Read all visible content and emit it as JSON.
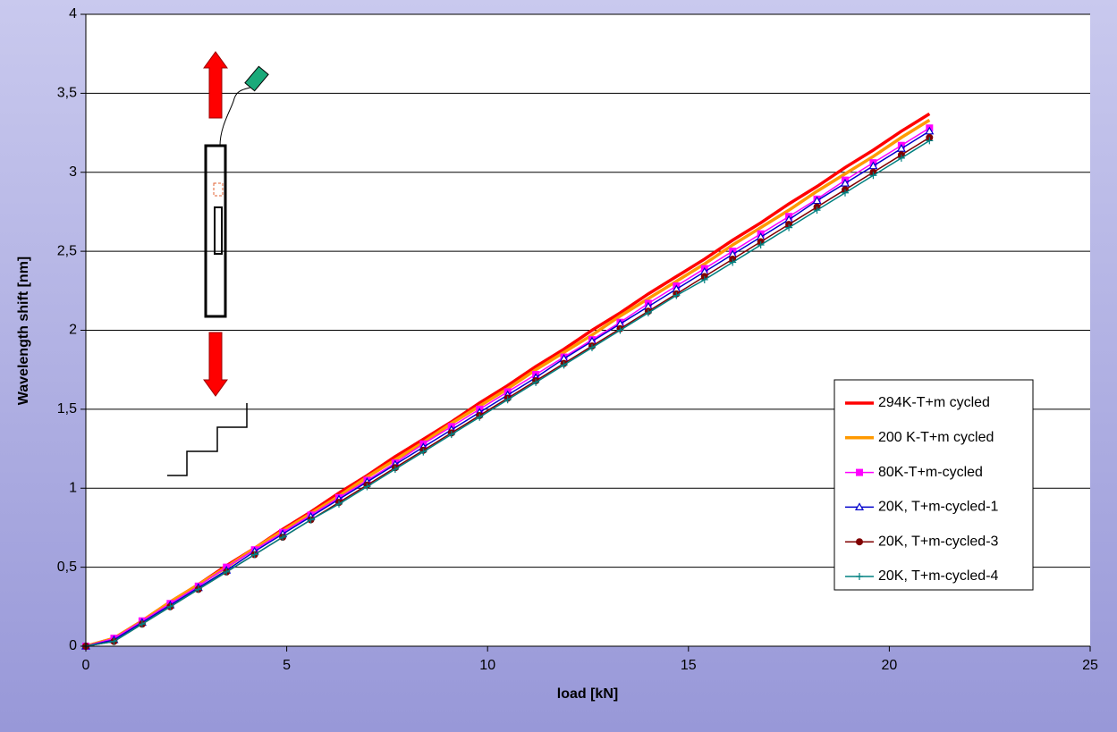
{
  "chart_data": {
    "type": "line",
    "xlabel": "load  [kN]",
    "ylabel": "Wavelength shift  [nm]",
    "x": [
      0,
      0.7,
      1.4,
      2.1,
      2.8,
      3.5,
      4.2,
      4.9,
      5.6,
      6.3,
      7,
      7.7,
      8.4,
      9.1,
      9.8,
      10.5,
      11.2,
      11.9,
      12.6,
      13.3,
      14,
      14.7,
      15.4,
      16.1,
      16.8,
      17.5,
      18.2,
      18.9,
      19.6,
      20.3,
      21
    ],
    "series": [
      {
        "name": "294K-T+m  cycled",
        "color": "#ff0000",
        "marker": "none",
        "values": [
          0,
          0.05,
          0.16,
          0.28,
          0.39,
          0.51,
          0.62,
          0.74,
          0.85,
          0.97,
          1.08,
          1.2,
          1.31,
          1.42,
          1.54,
          1.65,
          1.77,
          1.88,
          2.0,
          2.11,
          2.23,
          2.34,
          2.45,
          2.57,
          2.68,
          2.8,
          2.91,
          3.03,
          3.14,
          3.26,
          3.37
        ]
      },
      {
        "name": "200 K-T+m cycled",
        "color": "#ff9900",
        "marker": "none",
        "values": [
          0,
          0.05,
          0.16,
          0.28,
          0.39,
          0.5,
          0.62,
          0.73,
          0.84,
          0.95,
          1.07,
          1.18,
          1.29,
          1.41,
          1.52,
          1.63,
          1.75,
          1.86,
          1.97,
          2.09,
          2.2,
          2.31,
          2.42,
          2.54,
          2.65,
          2.76,
          2.88,
          2.99,
          3.1,
          3.22,
          3.33
        ]
      },
      {
        "name": "80K-T+m-cycled",
        "color": "#ff00ff",
        "marker": "square",
        "values": [
          0,
          0.05,
          0.16,
          0.27,
          0.38,
          0.5,
          0.61,
          0.72,
          0.83,
          0.94,
          1.05,
          1.16,
          1.28,
          1.39,
          1.5,
          1.61,
          1.72,
          1.83,
          1.94,
          2.05,
          2.17,
          2.28,
          2.39,
          2.5,
          2.61,
          2.72,
          2.83,
          2.95,
          3.06,
          3.17,
          3.28
        ]
      },
      {
        "name": "20K, T+m-cycled-1",
        "color": "#0000cc",
        "marker": "triangle",
        "values": [
          0,
          0.04,
          0.15,
          0.26,
          0.37,
          0.48,
          0.6,
          0.71,
          0.82,
          0.93,
          1.04,
          1.15,
          1.26,
          1.37,
          1.48,
          1.59,
          1.7,
          1.82,
          1.93,
          2.04,
          2.15,
          2.26,
          2.37,
          2.48,
          2.59,
          2.7,
          2.82,
          2.93,
          3.04,
          3.15,
          3.26
        ]
      },
      {
        "name": "20K, T+m-cycled-3",
        "color": "#800000",
        "marker": "circle",
        "values": [
          0,
          0.03,
          0.14,
          0.25,
          0.36,
          0.47,
          0.58,
          0.69,
          0.8,
          0.91,
          1.02,
          1.13,
          1.24,
          1.35,
          1.46,
          1.57,
          1.68,
          1.79,
          1.9,
          2.01,
          2.12,
          2.23,
          2.34,
          2.45,
          2.56,
          2.67,
          2.78,
          2.89,
          3.0,
          3.11,
          3.22
        ]
      },
      {
        "name": "20K, T+m-cycled-4",
        "color": "#008080",
        "marker": "plus",
        "values": [
          0,
          0.03,
          0.14,
          0.25,
          0.36,
          0.47,
          0.58,
          0.69,
          0.8,
          0.9,
          1.01,
          1.12,
          1.23,
          1.34,
          1.45,
          1.56,
          1.67,
          1.78,
          1.89,
          2.0,
          2.11,
          2.22,
          2.32,
          2.43,
          2.54,
          2.65,
          2.76,
          2.87,
          2.98,
          3.09,
          3.2
        ]
      }
    ],
    "xlim": [
      0,
      25
    ],
    "xticks": [
      0,
      5,
      10,
      15,
      20,
      25
    ],
    "ylim": [
      0,
      4
    ],
    "yticks": [
      0,
      {
        "value": 0.5,
        "label": "0,5"
      },
      1,
      {
        "value": 1.5,
        "label": "1,5"
      },
      2,
      {
        "value": 2.5,
        "label": "2,5"
      },
      3,
      {
        "value": 3.5,
        "label": "3,5"
      },
      4
    ],
    "grid": true,
    "legend": "lower right"
  }
}
